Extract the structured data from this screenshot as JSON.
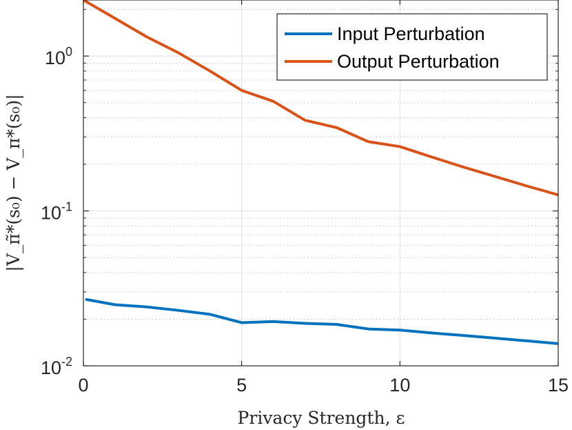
{
  "chart_data": {
    "type": "line",
    "xlabel": "Privacy Strength, ε",
    "ylabel": "|V_π̃*(s₀) − V_π*(s₀)|",
    "xlim": [
      0,
      15
    ],
    "ylim": [
      0.01,
      2.3
    ],
    "yscale": "log",
    "grid": true,
    "legend_position": "top-right",
    "xticks": [
      {
        "value": 0,
        "label": "0"
      },
      {
        "value": 5,
        "label": "5"
      },
      {
        "value": 10,
        "label": "10"
      },
      {
        "value": 15,
        "label": "15"
      }
    ],
    "yticks": [
      {
        "value": 0.01,
        "base": "10",
        "exp": "-2"
      },
      {
        "value": 0.1,
        "base": "10",
        "exp": "-1"
      },
      {
        "value": 1,
        "base": "10",
        "exp": "0"
      }
    ],
    "series": [
      {
        "name": "Input Perturbation",
        "color": "#0072BD",
        "x": [
          0.1,
          1,
          2,
          3,
          4,
          5,
          6,
          7,
          8,
          9,
          10,
          11,
          12,
          13,
          14,
          15
        ],
        "y": [
          0.0268,
          0.0248,
          0.024,
          0.0228,
          0.0215,
          0.019,
          0.0193,
          0.0188,
          0.0185,
          0.0173,
          0.017,
          0.0163,
          0.0157,
          0.0151,
          0.0145,
          0.0139
        ]
      },
      {
        "name": "Output Perturbation",
        "color": "#D95319",
        "x": [
          0,
          1,
          2,
          3,
          4,
          5,
          6,
          7,
          8,
          9,
          10,
          11,
          12,
          13,
          14,
          15
        ],
        "y": [
          2.3,
          1.75,
          1.33,
          1.05,
          0.8,
          0.6,
          0.51,
          0.385,
          0.345,
          0.28,
          0.26,
          0.223,
          0.192,
          0.167,
          0.145,
          0.127
        ]
      }
    ]
  }
}
